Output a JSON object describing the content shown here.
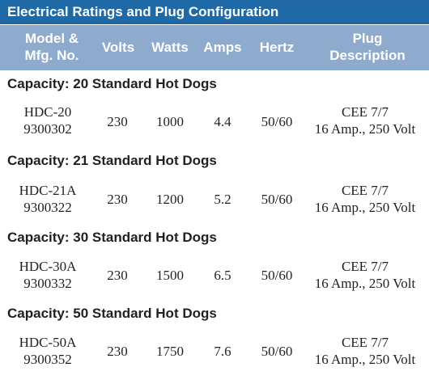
{
  "title": "Electrical Ratings and Plug Configuration",
  "headers": {
    "model_line1": "Model &",
    "model_line2": "Mfg. No.",
    "volts": "Volts",
    "watts": "Watts",
    "amps": "Amps",
    "hertz": "Hertz",
    "plug_line1": "Plug",
    "plug_line2": "Description"
  },
  "sections": [
    {
      "title": "Capacity: 20 Standard Hot Dogs",
      "model": "HDC-20",
      "mfg_no": "9300302",
      "volts": "230",
      "watts": "1000",
      "amps": "4.4",
      "hertz": "50/60",
      "plug_line1": "CEE 7/7",
      "plug_line2": "16 Amp., 250 Volt"
    },
    {
      "title": "Capacity: 21 Standard Hot Dogs",
      "model": "HDC-21A",
      "mfg_no": "9300322",
      "volts": "230",
      "watts": "1200",
      "amps": "5.2",
      "hertz": "50/60",
      "plug_line1": "CEE 7/7",
      "plug_line2": "16 Amp., 250 Volt"
    },
    {
      "title": "Capacity: 30 Standard Hot Dogs",
      "model": "HDC-30A",
      "mfg_no": "9300332",
      "volts": "230",
      "watts": "1500",
      "amps": "6.5",
      "hertz": "50/60",
      "plug_line1": "CEE 7/7",
      "plug_line2": "16 Amp., 250 Volt"
    },
    {
      "title": "Capacity: 50 Standard Hot Dogs",
      "model": "HDC-50A",
      "mfg_no": "9300352",
      "volts": "230",
      "watts": "1750",
      "amps": "7.6",
      "hertz": "50/60",
      "plug_line1": "CEE 7/7",
      "plug_line2": "16 Amp., 250 Volt"
    }
  ]
}
